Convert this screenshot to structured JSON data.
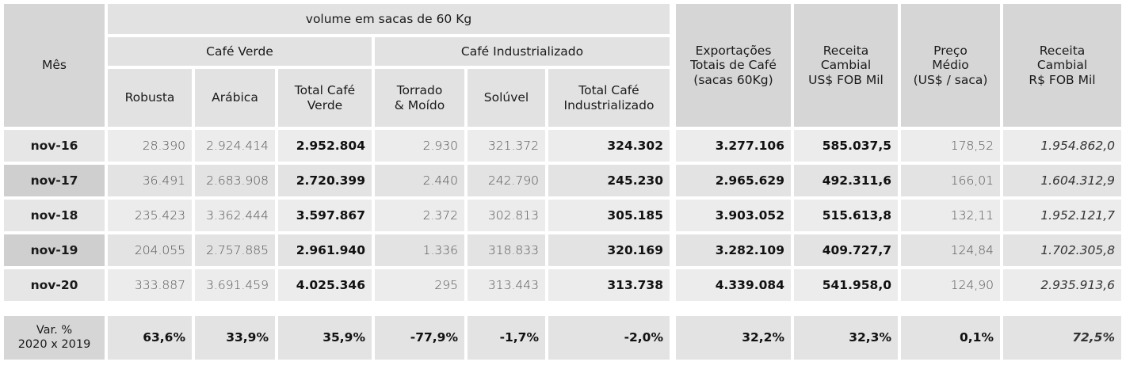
{
  "header": {
    "mes": "Mês",
    "volume": "volume em sacas de 60 Kg",
    "cafe_verde": "Café Verde",
    "cafe_industrializado": "Café Industrializado",
    "robusta": "Robusta",
    "arabica": "Arábica",
    "total_verde_1": "Total Café",
    "total_verde_2": "Verde",
    "torrado_1": "Torrado",
    "torrado_2": "& Moído",
    "soluvel": "Solúvel",
    "total_ind_1": "Total Café",
    "total_ind_2": "Industrializado",
    "export_1": "Exportações",
    "export_2": "Totais de Café",
    "export_3": "(sacas 60Kg)",
    "receita_usd_1": "Receita",
    "receita_usd_2": "Cambial",
    "receita_usd_3": "US$ FOB Mil",
    "preco_1": "Preço",
    "preco_2": "Médio",
    "preco_3": "(US$ / saca)",
    "receita_brl_1": "Receita",
    "receita_brl_2": "Cambial",
    "receita_brl_3": "R$ FOB Mil"
  },
  "rows": [
    {
      "mes": "nov-16",
      "robusta": "28.390",
      "arabica": "2.924.414",
      "total_verde": "2.952.804",
      "torrado": "2.930",
      "soluvel": "321.372",
      "total_ind": "324.302",
      "export": "3.277.106",
      "receita_usd": "585.037,5",
      "preco": "178,52",
      "receita_brl": "1.954.862,0"
    },
    {
      "mes": "nov-17",
      "robusta": "36.491",
      "arabica": "2.683.908",
      "total_verde": "2.720.399",
      "torrado": "2.440",
      "soluvel": "242.790",
      "total_ind": "245.230",
      "export": "2.965.629",
      "receita_usd": "492.311,6",
      "preco": "166,01",
      "receita_brl": "1.604.312,9"
    },
    {
      "mes": "nov-18",
      "robusta": "235.423",
      "arabica": "3.362.444",
      "total_verde": "3.597.867",
      "torrado": "2.372",
      "soluvel": "302.813",
      "total_ind": "305.185",
      "export": "3.903.052",
      "receita_usd": "515.613,8",
      "preco": "132,11",
      "receita_brl": "1.952.121,7"
    },
    {
      "mes": "nov-19",
      "robusta": "204.055",
      "arabica": "2.757.885",
      "total_verde": "2.961.940",
      "torrado": "1.336",
      "soluvel": "318.833",
      "total_ind": "320.169",
      "export": "3.282.109",
      "receita_usd": "409.727,7",
      "preco": "124,84",
      "receita_brl": "1.702.305,8"
    },
    {
      "mes": "nov-20",
      "robusta": "333.887",
      "arabica": "3.691.459",
      "total_verde": "4.025.346",
      "torrado": "295",
      "soluvel": "313.443",
      "total_ind": "313.738",
      "export": "4.339.084",
      "receita_usd": "541.958,0",
      "preco": "124,90",
      "receita_brl": "2.935.913,6"
    }
  ],
  "variation": {
    "label_1": "Var. %",
    "label_2": "2020 x 2019",
    "robusta": "63,6%",
    "arabica": "33,9%",
    "total_verde": "35,9%",
    "torrado": "-77,9%",
    "soluvel": "-1,7%",
    "total_ind": "-2,0%",
    "export": "32,2%",
    "receita_usd": "32,3%",
    "preco": "0,1%",
    "receita_brl": "72,5%"
  }
}
